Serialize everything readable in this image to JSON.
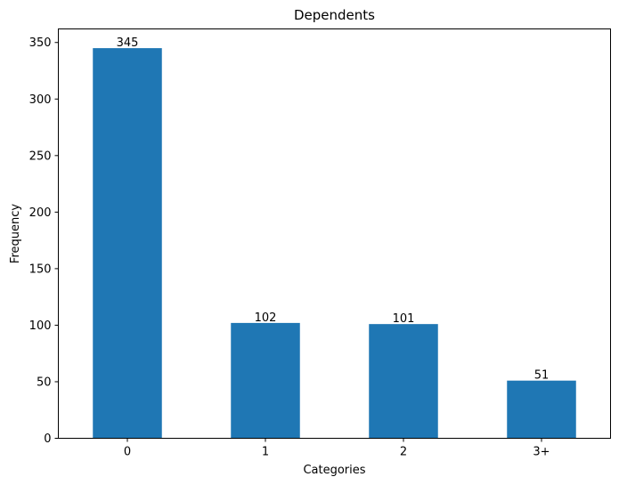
{
  "chart_data": {
    "type": "bar",
    "title": "Dependents",
    "xlabel": "Categories",
    "ylabel": "Frequency",
    "categories": [
      "0",
      "1",
      "2",
      "3+"
    ],
    "values": [
      345,
      102,
      101,
      51
    ],
    "data_labels": [
      "345",
      "102",
      "101",
      "51"
    ],
    "ylim": [
      0,
      362
    ],
    "yticks": [
      0,
      50,
      100,
      150,
      200,
      250,
      300,
      350
    ],
    "ytick_labels": [
      "0",
      "50",
      "100",
      "150",
      "200",
      "250",
      "300",
      "350"
    ],
    "grid": false,
    "legend": "none",
    "bar_color": "#1f77b4"
  }
}
